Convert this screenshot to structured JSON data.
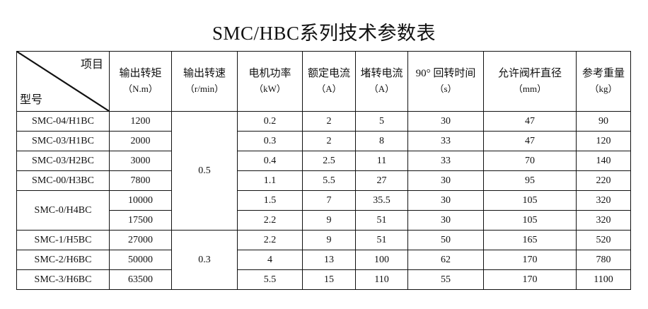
{
  "title": "SMC/HBC系列技术参数表",
  "header": {
    "corner_top": "项目",
    "corner_bottom": "型号",
    "columns": [
      {
        "label": "输出转矩",
        "unit": "（N.m）"
      },
      {
        "label": "输出转速",
        "unit": "（r/min）"
      },
      {
        "label": "电机功率",
        "unit": "（kW）"
      },
      {
        "label": "额定电流",
        "unit": "（A）"
      },
      {
        "label": "堵转电流",
        "unit": "（A）"
      },
      {
        "label": "90° 回转时间",
        "unit": "（s）"
      },
      {
        "label": "允许阀杆直径",
        "unit": "（mm）"
      },
      {
        "label": "参考重量",
        "unit": "（kg）"
      }
    ]
  },
  "speed_groups": [
    "0.5",
    "0.3"
  ],
  "rows": [
    {
      "model": "SMC-04/H1BC",
      "torque": "1200",
      "power": "0.2",
      "rated": "2",
      "stall": "5",
      "time": "30",
      "stem": "47",
      "weight": "90"
    },
    {
      "model": "SMC-03/H1BC",
      "torque": "2000",
      "power": "0.3",
      "rated": "2",
      "stall": "8",
      "time": "33",
      "stem": "47",
      "weight": "120"
    },
    {
      "model": "SMC-03/H2BC",
      "torque": "3000",
      "power": "0.4",
      "rated": "2.5",
      "stall": "11",
      "time": "33",
      "stem": "70",
      "weight": "140"
    },
    {
      "model": "SMC-00/H3BC",
      "torque": "7800",
      "power": "1.1",
      "rated": "5.5",
      "stall": "27",
      "time": "30",
      "stem": "95",
      "weight": "220"
    },
    {
      "model": "SMC-0/H4BC",
      "torque": "10000",
      "power": "1.5",
      "rated": "7",
      "stall": "35.5",
      "time": "30",
      "stem": "105",
      "weight": "320"
    },
    {
      "model": "",
      "torque": "17500",
      "power": "2.2",
      "rated": "9",
      "stall": "51",
      "time": "30",
      "stem": "105",
      "weight": "320"
    },
    {
      "model": "SMC-1/H5BC",
      "torque": "27000",
      "power": "2.2",
      "rated": "9",
      "stall": "51",
      "time": "50",
      "stem": "165",
      "weight": "520"
    },
    {
      "model": "SMC-2/H6BC",
      "torque": "50000",
      "power": "4",
      "rated": "13",
      "stall": "100",
      "time": "62",
      "stem": "170",
      "weight": "780"
    },
    {
      "model": "SMC-3/H6BC",
      "torque": "63500",
      "power": "5.5",
      "rated": "15",
      "stall": "110",
      "time": "55",
      "stem": "170",
      "weight": "1100"
    }
  ]
}
